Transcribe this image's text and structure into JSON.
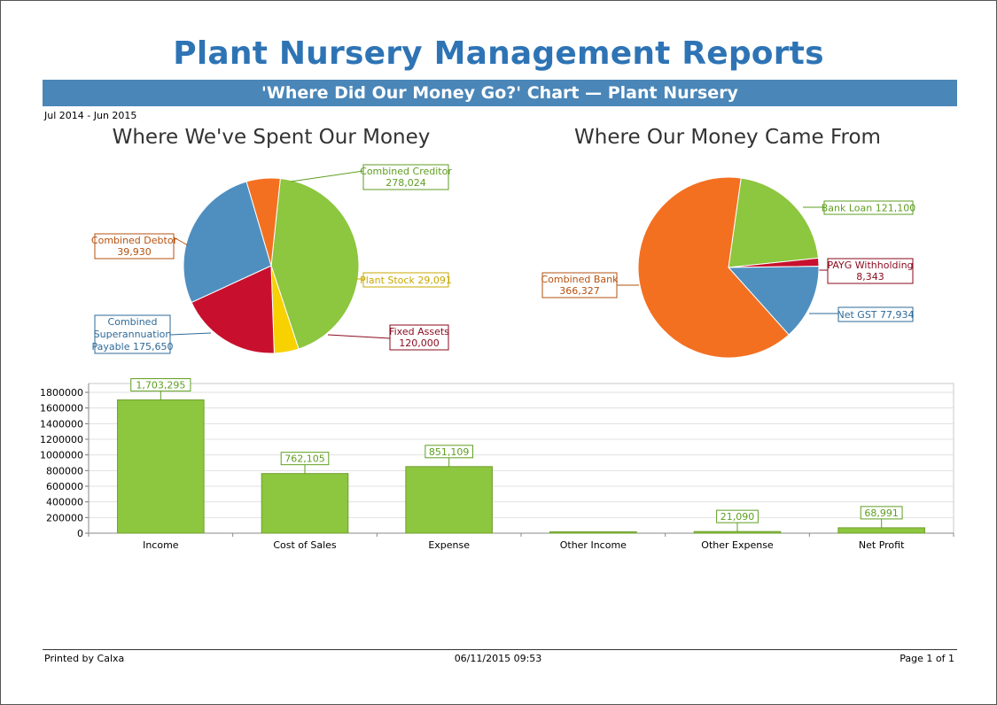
{
  "report": {
    "title": "Plant Nursery Management Reports",
    "subtitle": "'Where Did Our Money Go?' Chart — Plant Nursery",
    "period": "Jul 2014 - Jun 2015"
  },
  "footer": {
    "printed_by": "Printed by Calxa",
    "printed_at": "06/11/2015 09:53",
    "page": "Page 1 of 1"
  },
  "colors": {
    "green": "#8dc63f",
    "orange": "#f37021",
    "blue": "#4f8fc0",
    "red": "#c8102e",
    "yellow": "#f7d100",
    "header_blue": "#4a86b8",
    "title_blue": "#2e74b5"
  },
  "chart_data": [
    {
      "type": "pie",
      "title": "Where We've Spent Our Money",
      "slices": [
        {
          "label": "Combined Creditor",
          "value_label": "278,024",
          "value": 278024,
          "color": "#8dc63f"
        },
        {
          "label": "Plant Stock",
          "value_label": "29,091",
          "value": 29091,
          "color": "#f7d100"
        },
        {
          "label": "Fixed Assets",
          "value_label": "120,000",
          "value": 120000,
          "color": "#c8102e"
        },
        {
          "label": "Combined Superannuation Payable",
          "value_label": "175,650",
          "value": 175650,
          "color": "#4f8fc0"
        },
        {
          "label": "Combined Debtor",
          "value_label": "39,930",
          "value": 39930,
          "color": "#f37021"
        }
      ]
    },
    {
      "type": "pie",
      "title": "Where Our Money Came From",
      "slices": [
        {
          "label": "Bank Loan",
          "value_label": "121,100",
          "value": 121100,
          "color": "#8dc63f"
        },
        {
          "label": "PAYG Withholding",
          "value_label": "8,343",
          "value": 8343,
          "color": "#c8102e"
        },
        {
          "label": "Net GST",
          "value_label": "77,934",
          "value": 77934,
          "color": "#4f8fc0"
        },
        {
          "label": "Combined Bank",
          "value_label": "366,327",
          "value": 366327,
          "color": "#f37021"
        }
      ]
    },
    {
      "type": "bar",
      "categories": [
        "Income",
        "Cost of Sales",
        "Expense",
        "Other Income",
        "Other Expense",
        "Net Profit"
      ],
      "values": [
        1703295,
        762105,
        851109,
        0,
        21090,
        68991
      ],
      "value_labels": [
        "1,703,295",
        "762,105",
        "851,109",
        "",
        "21,090",
        "68,991"
      ],
      "ylim": [
        0,
        1800000
      ],
      "yticks": [
        0,
        200000,
        400000,
        600000,
        800000,
        1000000,
        1200000,
        1400000,
        1600000,
        1800000
      ],
      "ytick_labels": [
        "0",
        "200000",
        "400000",
        "600000",
        "800000",
        "1000000",
        "1200000",
        "1400000",
        "1600000",
        "1800000"
      ],
      "grid": true,
      "color": "#8dc63f"
    }
  ]
}
